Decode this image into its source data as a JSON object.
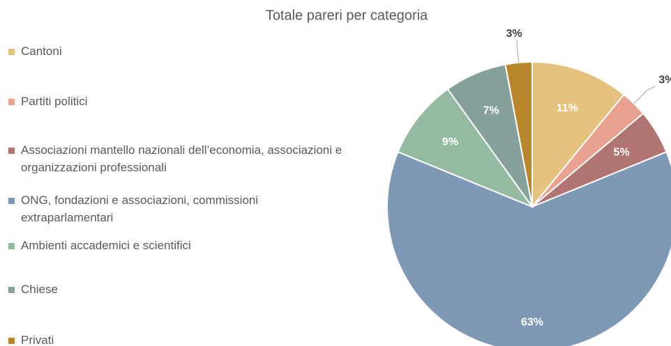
{
  "chart_data": {
    "type": "pie",
    "title": "Totale pareri per categoria",
    "categories": [
      "Cantoni",
      "Partiti politici",
      "Associazioni mantello nazionali dell’economia, associazioni e organizzazioni professionali",
      "ONG, fondazioni e associazioni, commissioni extraparlamentari",
      "Ambienti accademici e scientifici",
      "Chiese",
      "Privati"
    ],
    "values": [
      11,
      3,
      5,
      63,
      9,
      7,
      3
    ],
    "value_labels": [
      "11%",
      "3%",
      "5%",
      "63%",
      "9%",
      "7%",
      "3%"
    ],
    "colors": [
      "#e6c27f",
      "#e9a292",
      "#b07572",
      "#7f98b6",
      "#94bba1",
      "#86a09b",
      "#b8862b"
    ],
    "legend": "left"
  }
}
